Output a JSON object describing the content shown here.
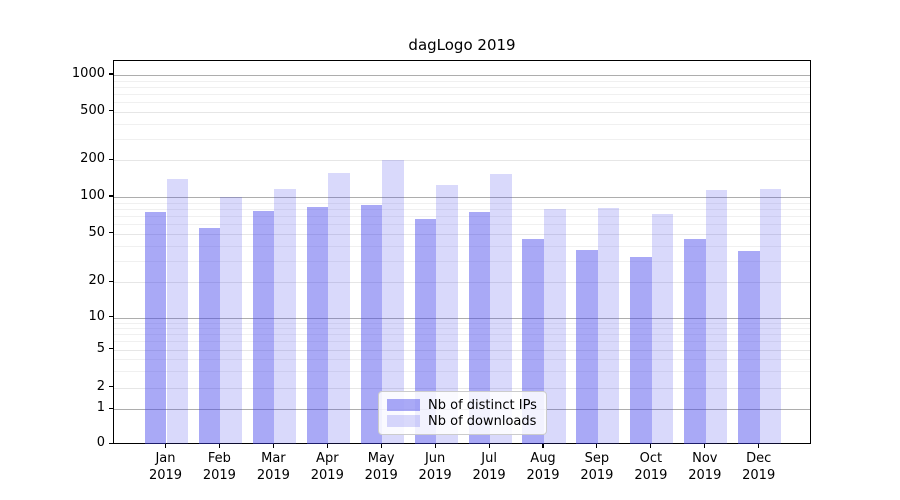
{
  "title": "dagLogo 2019",
  "legend": {
    "items": [
      {
        "label": "Nb of distinct IPs",
        "alpha": 0.45
      },
      {
        "label": "Nb of downloads",
        "alpha": 0.2
      }
    ]
  },
  "colors": {
    "bar_rgb": "64,64,235",
    "grid_decade": "#adadad",
    "grid_mid": "#e6e6e6",
    "grid_minor": "#f0f0f0",
    "spine": "#000000",
    "legend_border": "#cccccc"
  },
  "chart_data": {
    "type": "bar",
    "title": "dagLogo 2019",
    "categories": [
      "Jan 2019",
      "Feb 2019",
      "Mar 2019",
      "Apr 2019",
      "May 2019",
      "Jun 2019",
      "Jul 2019",
      "Aug 2019",
      "Sep 2019",
      "Oct 2019",
      "Nov 2019",
      "Dec 2019"
    ],
    "series": [
      {
        "name": "Nb of distinct IPs",
        "values": [
          76,
          56,
          77,
          83,
          86,
          66,
          76,
          45,
          37,
          32,
          45,
          36
        ]
      },
      {
        "name": "Nb of downloads",
        "values": [
          140,
          101,
          117,
          157,
          200,
          126,
          154,
          80,
          82,
          73,
          115,
          117
        ]
      }
    ],
    "yscale": "symlog",
    "y_ticks": [
      0,
      1,
      2,
      5,
      10,
      20,
      50,
      100,
      200,
      500,
      1000
    ],
    "y_minor_ticks": [
      3,
      4,
      6,
      7,
      8,
      9,
      30,
      40,
      60,
      70,
      80,
      90,
      300,
      400,
      600,
      700,
      800,
      900
    ],
    "ylim": [
      0,
      1300
    ],
    "grid": true,
    "legend_position": "lower center"
  }
}
